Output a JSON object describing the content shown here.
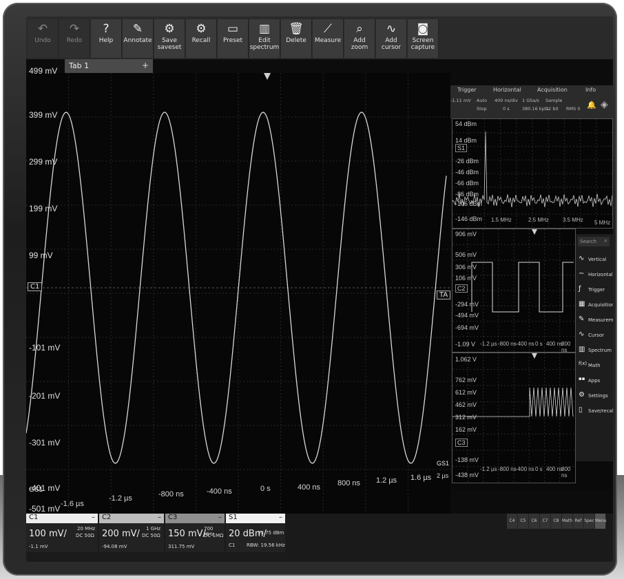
{
  "toolbar": {
    "buttons": [
      {
        "label": "Undo",
        "icon": "undo-icon",
        "glyph": "↶"
      },
      {
        "label": "Redo",
        "icon": "redo-icon",
        "glyph": "↷"
      },
      {
        "label": "Help",
        "icon": "help-icon",
        "glyph": "?"
      },
      {
        "label": "Annotate",
        "icon": "pen-icon",
        "glyph": "✎"
      },
      {
        "label": "Save saveset",
        "icon": "save-gear-icon",
        "glyph": "⚙"
      },
      {
        "label": "Recall",
        "icon": "recall-gear-icon",
        "glyph": "⚙"
      },
      {
        "label": "Preset",
        "icon": "preset-icon",
        "glyph": "▭"
      },
      {
        "label": "Edit spectrum",
        "icon": "spectrum-icon",
        "glyph": "▥"
      },
      {
        "label": "Delete",
        "icon": "trash-icon",
        "glyph": "🗑"
      },
      {
        "label": "Measure",
        "icon": "ruler-icon",
        "glyph": "⟋"
      },
      {
        "label": "Add zoom",
        "icon": "zoom-icon",
        "glyph": "⌕"
      },
      {
        "label": "Add cursor",
        "icon": "cursor-wave-icon",
        "glyph": "∿"
      },
      {
        "label": "Screen capture",
        "icon": "camera-icon",
        "glyph": "◙"
      }
    ]
  },
  "tab": {
    "name": "Tab 1",
    "add": "+"
  },
  "status": {
    "trigger": {
      "title": "Trigger",
      "type": "Edge",
      "level": "-1.11 mV",
      "mode": "Auto",
      "state": "Stop"
    },
    "horizontal": {
      "title": "Horizontal",
      "scale": "400 ns/div",
      "pos": "0 s"
    },
    "acquisition": {
      "title": "Acquisition",
      "rate": "1 GSa/s",
      "points": "380.16 kpts",
      "mode": "Sample",
      "bits": "12 bit",
      "rbw": "RMS 0"
    },
    "info": {
      "title": "Info"
    }
  },
  "main": {
    "y_labels": [
      "499 mV",
      "399 mV",
      "299 mV",
      "199 mV",
      "99 mV",
      "-101 mV",
      "-201 mV",
      "-301 mV",
      "-401 mV",
      "-501 mV"
    ],
    "x_labels": [
      "-1.6 µs",
      "-1.2 µs",
      "-800 ns",
      "-400 ns",
      "0 s",
      "400 ns",
      "800 ns",
      "1.2 µs",
      "1.6 µs",
      "2 µs"
    ],
    "markers": {
      "c1": "C1",
      "ta": "TA",
      "gs1_left": "GS1",
      "gs1_right": "GS1"
    },
    "waveform_color": "#d8d8d8"
  },
  "spectrum_pane": {
    "y_labels": [
      "54 dBm",
      "14 dBm",
      "-26 dBm",
      "-46 dBm",
      "-66 dBm",
      "-86 dBm",
      "-106 dBm",
      "-146 dBm"
    ],
    "x_labels": [
      "1.5 MHz",
      "2.5 MHz",
      "3.5 MHz",
      "5 MHz"
    ],
    "marker": "S1"
  },
  "c2_pane": {
    "y_labels": [
      "906 mV",
      "506 mV",
      "306 mV",
      "106 mV",
      "-294 mV",
      "-494 mV",
      "-694 mV",
      "-1.09 V"
    ],
    "x_labels": [
      "-1.2 µs",
      "-800 ns",
      "-400 ns",
      "0 s",
      "400 ns",
      "800 ns"
    ],
    "marker": "C2"
  },
  "c3_pane": {
    "y_labels": [
      "1.062 V",
      "762 mV",
      "612 mV",
      "462 mV",
      "312 mV",
      "162 mV",
      "-138 mV",
      "-438 mV"
    ],
    "x_labels": [
      "-1.2 µs",
      "-800 ns",
      "-400 ns",
      "0 s",
      "400 ns",
      "800 ns"
    ],
    "marker": "C3"
  },
  "side_menu": {
    "search_placeholder": "Search",
    "items": [
      {
        "label": "Vertical",
        "glyph": "∿"
      },
      {
        "label": "Horizontal",
        "glyph": "∼"
      },
      {
        "label": "Trigger",
        "glyph": "ƒ"
      },
      {
        "label": "Acquisition",
        "glyph": "▦"
      },
      {
        "label": "Measurement",
        "glyph": "✎"
      },
      {
        "label": "Cursor",
        "glyph": "∿"
      },
      {
        "label": "Spectrum",
        "glyph": "▥"
      },
      {
        "label": "Math",
        "glyph": "f(x)"
      },
      {
        "label": "Apps",
        "glyph": "▪▪"
      },
      {
        "label": "Settings",
        "glyph": "⚙"
      },
      {
        "label": "Save/recall",
        "glyph": "▯"
      }
    ]
  },
  "channels": {
    "c1": {
      "name": "C1",
      "scale": "100 mV/",
      "bw": "20 MHz",
      "coupling": "DC 50Ω",
      "offset": "-1.1 mV",
      "minus": "–"
    },
    "c2": {
      "name": "C2",
      "scale": "200 mV/",
      "bw": "1 GHz",
      "coupling": "DC 50Ω",
      "offset": "-94.08 mV",
      "minus": "–"
    },
    "c3": {
      "name": "C3",
      "scale": "150 mV/",
      "bw": "700 MHz",
      "coupling": "DC 1MΩ",
      "offset": "311.75 mV",
      "minus": "–"
    },
    "s1": {
      "name": "S1",
      "scale": "20 dBm/",
      "ref": "53.75 dBm",
      "src": "C1",
      "rbw": "RBW: 19.56 kHz",
      "minus": "–"
    }
  },
  "slots": [
    "C4",
    "C5",
    "C6",
    "C7",
    "C8",
    "Math",
    "Ref",
    "Spec",
    "Menu"
  ]
}
